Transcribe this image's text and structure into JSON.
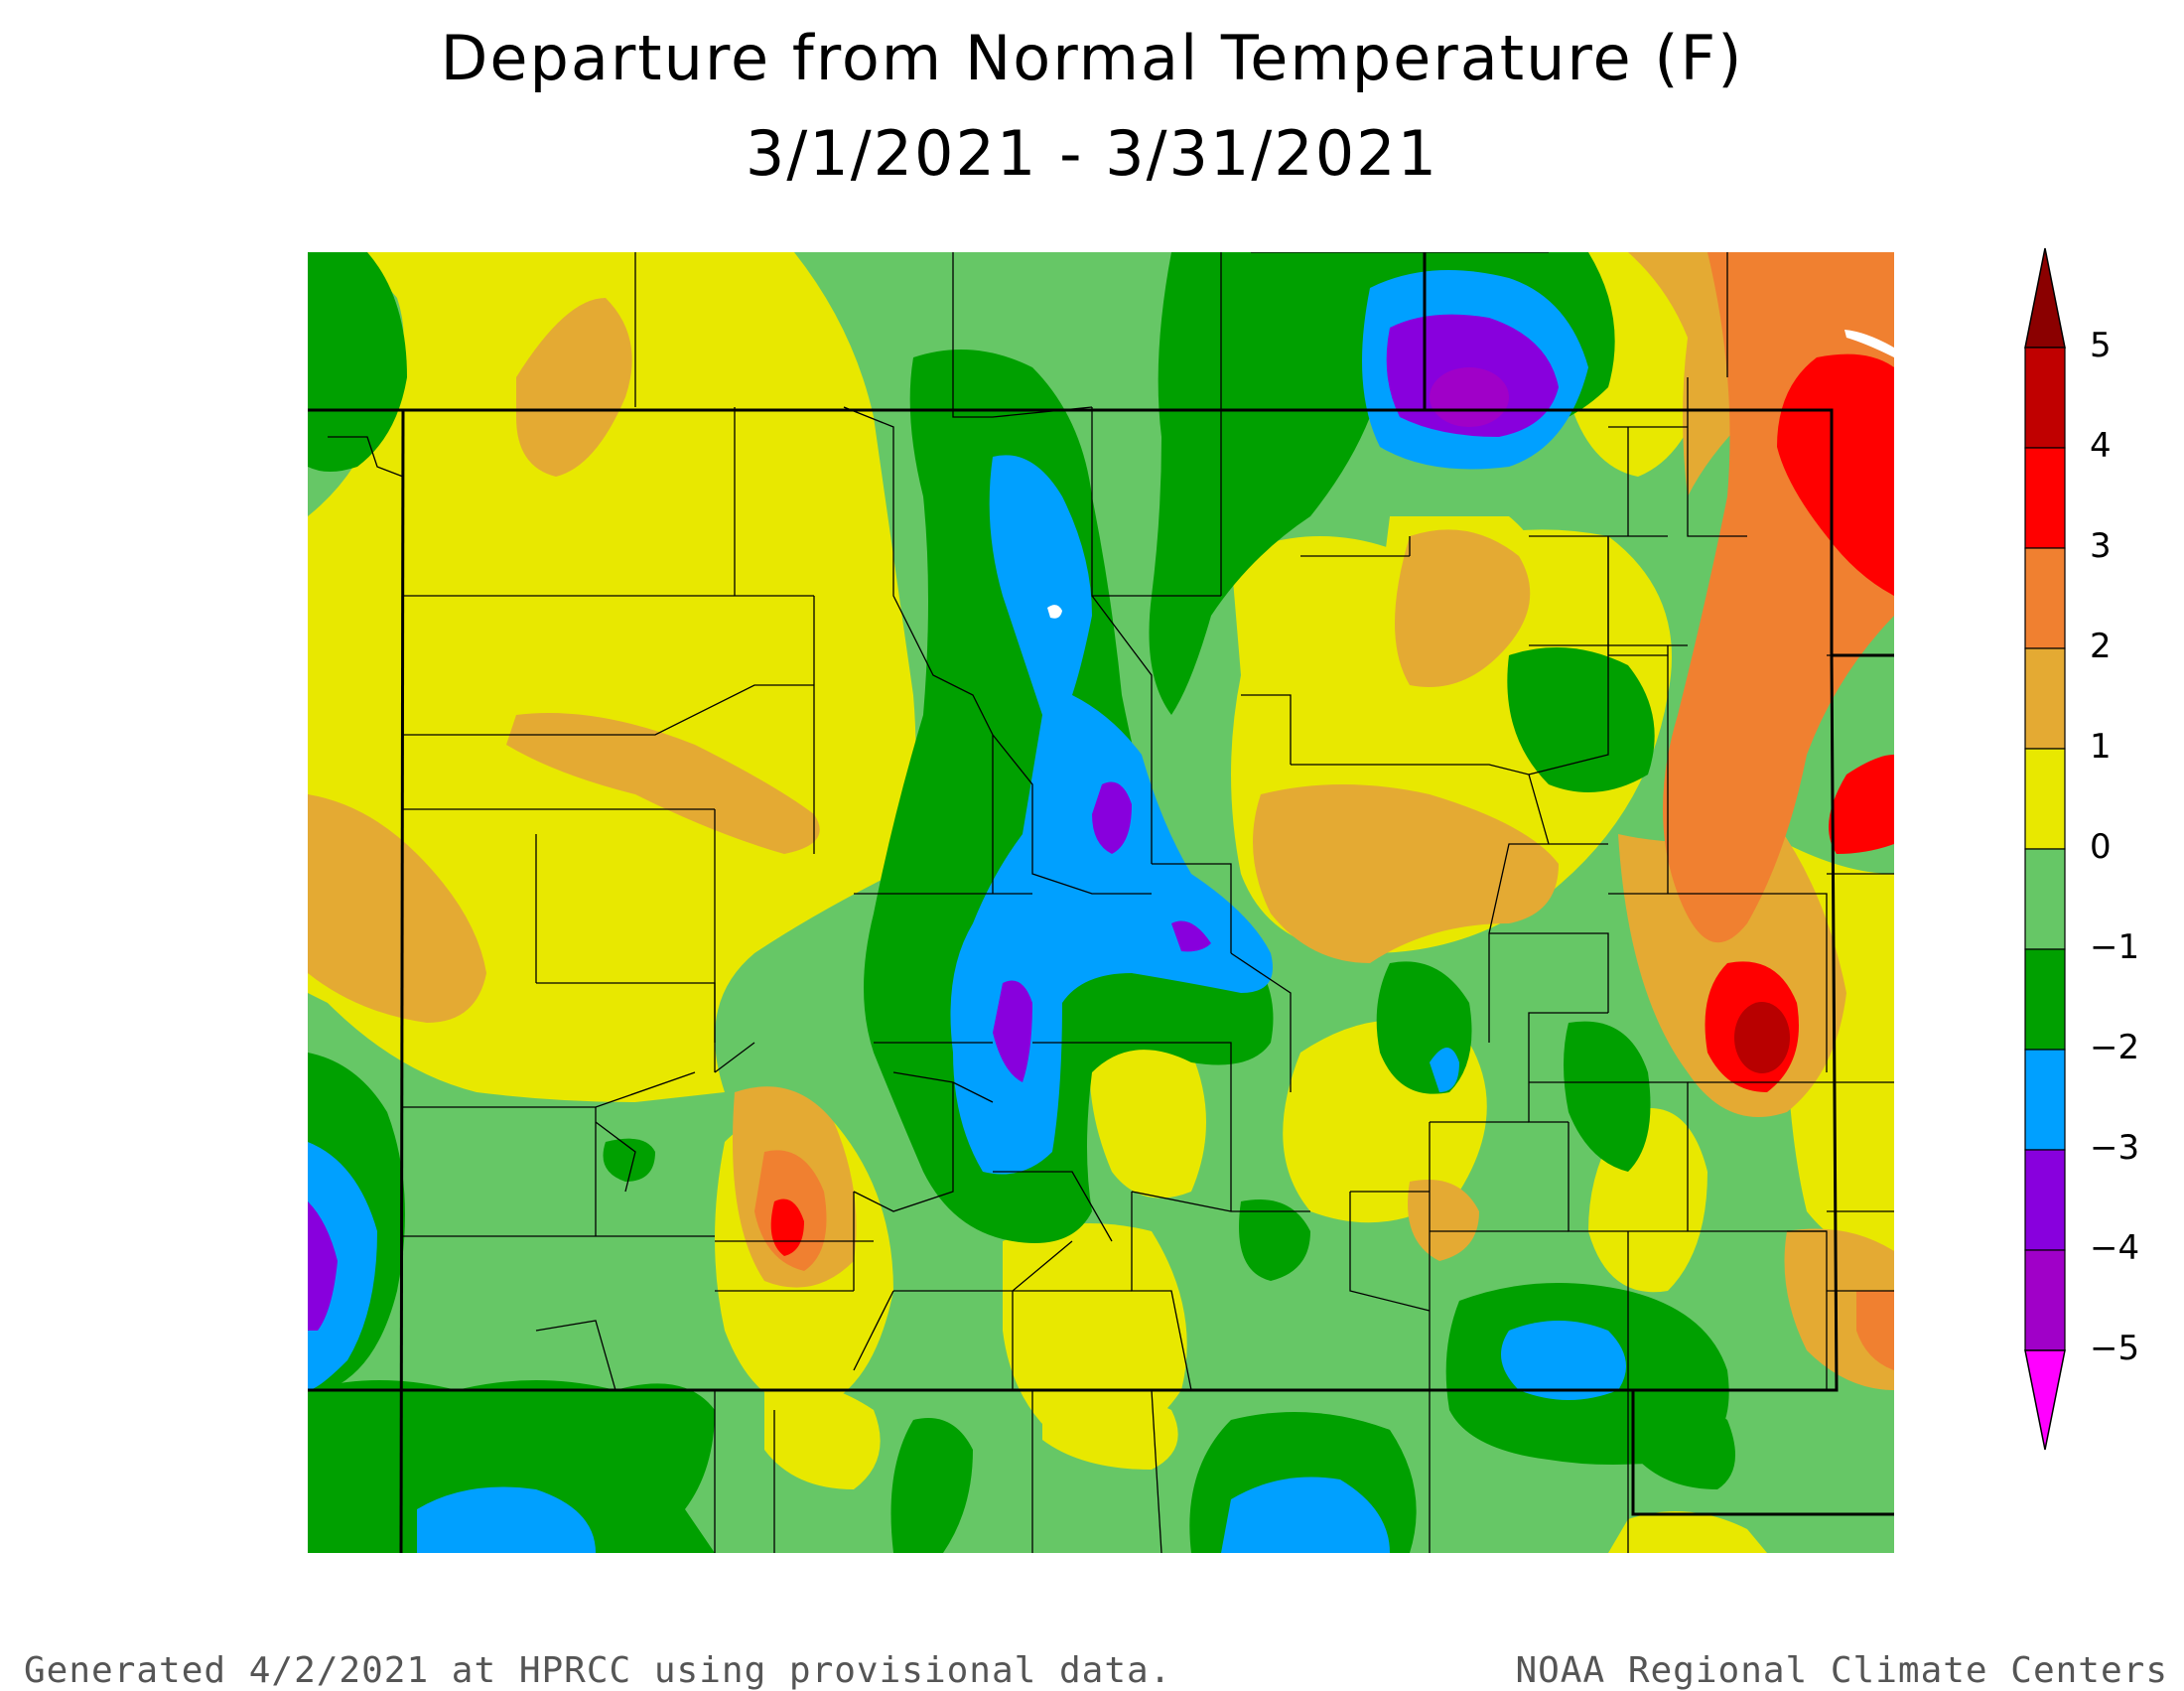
{
  "title": {
    "line1": "Departure from Normal Temperature (F)",
    "line2": "3/1/2021 - 3/31/2021"
  },
  "legend": {
    "ticks": [
      "5",
      "4",
      "3",
      "2",
      "1",
      "0",
      "−1",
      "−2",
      "−3",
      "−4",
      "−5"
    ],
    "bins": [
      {
        "range": ">5",
        "color": "#8b0000"
      },
      {
        "range": "4 to 5",
        "color": "#c00000"
      },
      {
        "range": "3 to 4",
        "color": "#ff0000"
      },
      {
        "range": "2 to 3",
        "color": "#f08030"
      },
      {
        "range": "1 to 2",
        "color": "#e4aa33"
      },
      {
        "range": "0 to 1",
        "color": "#e8e800"
      },
      {
        "range": "-1 to 0",
        "color": "#66c766"
      },
      {
        "range": "-2 to -1",
        "color": "#00a000"
      },
      {
        "range": "-3 to -2",
        "color": "#00a0ff"
      },
      {
        "range": "-4 to -3",
        "color": "#8800dd"
      },
      {
        "range": "-5 to -4",
        "color": "#a000c8"
      },
      {
        "range": "<-5",
        "color": "#ff00ff"
      }
    ]
  },
  "footer": {
    "left": "Generated 4/2/2021 at HPRCC using provisional data.",
    "right": "NOAA Regional Climate Centers"
  }
}
